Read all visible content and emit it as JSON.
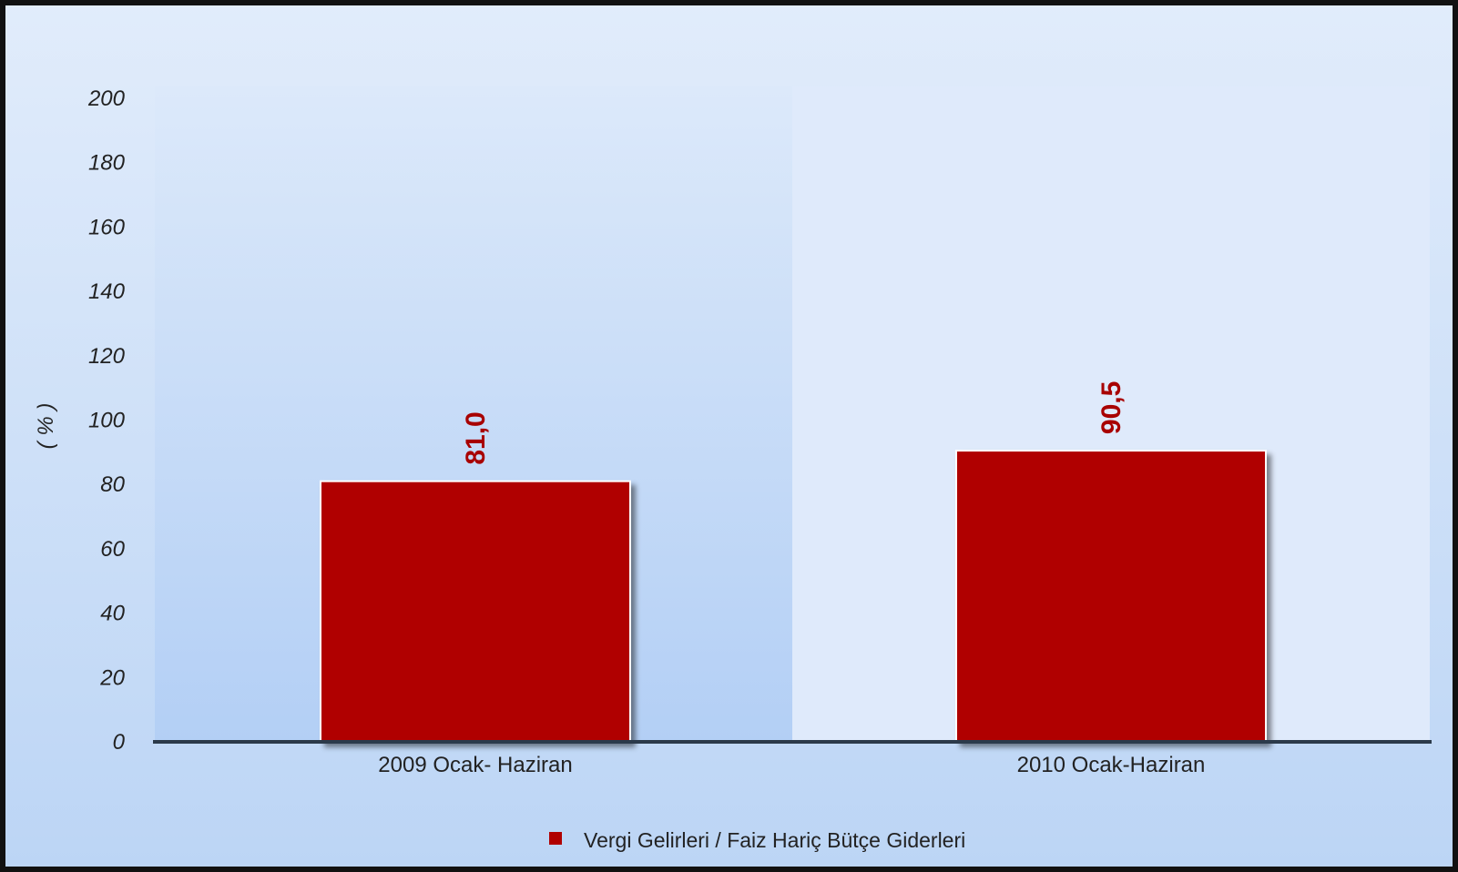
{
  "chart_data": {
    "type": "bar",
    "categories": [
      "2009 Ocak- Haziran",
      "2010 Ocak-Haziran"
    ],
    "series": [
      {
        "name": "Vergi Gelirleri / Faiz Hariç Bütçe Giderleri",
        "values": [
          81.0,
          90.5
        ],
        "color": "#b00000"
      }
    ],
    "value_labels": [
      "81,0",
      "90,5"
    ],
    "ylabel": "( % )",
    "ylim": [
      0,
      200
    ],
    "yticks": [
      0,
      20,
      40,
      60,
      80,
      100,
      120,
      140,
      160,
      180,
      200
    ],
    "grid": false,
    "legend": "bottom-center"
  }
}
